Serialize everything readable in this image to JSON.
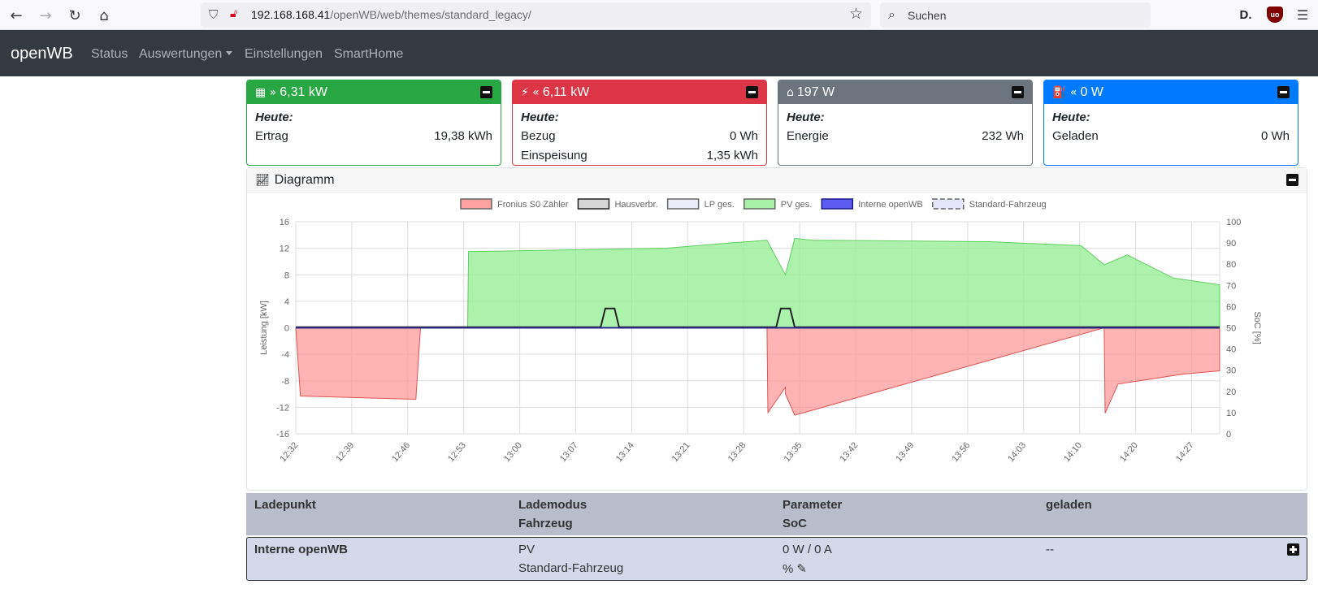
{
  "browser": {
    "url_host": "192.168.168.41",
    "url_path": "/openWB/web/themes/standard_legacy/",
    "search_placeholder": "Suchen",
    "icons": [
      "back-icon",
      "forward-icon",
      "reload-icon",
      "home-icon",
      "shield-icon",
      "insecure-lock-icon",
      "bookmark-star-icon",
      "search-icon",
      "menu-icon"
    ]
  },
  "navbar": {
    "brand": "openWB",
    "links": [
      "Status",
      "Auswertungen",
      "Einstellungen",
      "SmartHome"
    ]
  },
  "cards": {
    "pv": {
      "header": "6,31 kW",
      "today": "Heute:",
      "rows": [
        {
          "label": "Ertrag",
          "value": "19,38 kWh"
        }
      ],
      "color": "#28a745"
    },
    "evu": {
      "header": "6,11 kW",
      "today": "Heute:",
      "rows": [
        {
          "label": "Bezug",
          "value": "0 Wh"
        },
        {
          "label": "Einspeisung",
          "value": "1,35 kWh"
        }
      ],
      "color": "#dc3545"
    },
    "home": {
      "header": "197 W",
      "today": "Heute:",
      "rows": [
        {
          "label": "Energie",
          "value": "232 Wh"
        }
      ],
      "color": "#6c757d"
    },
    "lp": {
      "header": "0 W",
      "today": "Heute:",
      "rows": [
        {
          "label": "Geladen",
          "value": "0 Wh"
        }
      ],
      "color": "#007bff"
    }
  },
  "diagram": {
    "title": "Diagramm"
  },
  "chart_data": {
    "type": "area",
    "xlabel": "",
    "ylabel": "Leistung [kW]",
    "y2label": "SoC [%]",
    "ylim": [
      -16,
      16
    ],
    "y_ticks": [
      16,
      12,
      8,
      4,
      0,
      -4,
      -8,
      -12,
      -16
    ],
    "y2lim": [
      0,
      100
    ],
    "y2_ticks": [
      100,
      90,
      80,
      70,
      60,
      50,
      40,
      30,
      20,
      10,
      0
    ],
    "x_ticks": [
      "12:32",
      "12:39",
      "12:46",
      "12:53",
      "13:00",
      "13:07",
      "13:14",
      "13:21",
      "13:28",
      "13:35",
      "13:42",
      "13:49",
      "13:56",
      "14:03",
      "14:10",
      "14:20",
      "14:27"
    ],
    "legend": [
      {
        "name": "Fronius S0 Zähler",
        "color": "#ff8a8a"
      },
      {
        "name": "Hausverbr.",
        "color": "#cccccc"
      },
      {
        "name": "LP ges.",
        "color": "#e8e8f8"
      },
      {
        "name": "PV ges.",
        "color": "#90ee90"
      },
      {
        "name": "Interne openWB",
        "color": "#3333ee"
      },
      {
        "name": "Standard-Fahrzeug",
        "color": "#aaaaee"
      }
    ],
    "series": [
      {
        "name": "Fronius S0 Zähler",
        "x": [
          0,
          0.005,
          0.13,
          0.135,
          0.5,
          0.51,
          0.511,
          0.53,
          0.53,
          0.54,
          0.875,
          0.876,
          0.89,
          0.96,
          1
        ],
        "values": [
          0,
          -10.3,
          -10.8,
          0,
          0,
          0,
          -12.8,
          -9,
          -10,
          -13.2,
          0,
          -12.9,
          -8.5,
          -7,
          -6.5
        ]
      },
      {
        "name": "PV ges.",
        "x": [
          0,
          0.186,
          0.187,
          0.4,
          0.47,
          0.51,
          0.53,
          0.54,
          0.56,
          0.75,
          0.85,
          0.875,
          0.9,
          0.95,
          1
        ],
        "values": [
          0,
          0,
          11.5,
          12,
          12.8,
          13.2,
          8,
          13.5,
          13.2,
          13,
          12.4,
          9.5,
          11,
          7.5,
          6.5
        ]
      },
      {
        "name": "Hausverbr.",
        "x": [
          0,
          0.33,
          0.335,
          0.345,
          0.35,
          0.52,
          0.525,
          0.535,
          0.54,
          1
        ],
        "values": [
          0.1,
          0.1,
          2.9,
          2.9,
          0.1,
          0.1,
          2.9,
          2.9,
          0.1,
          0.1
        ]
      }
    ]
  },
  "table": {
    "headers": {
      "ladepunkt": "Ladepunkt",
      "lademodus": "Lademodus",
      "fahrzeug": "Fahrzeug",
      "parameter": "Parameter",
      "soc": "SoC",
      "geladen": "geladen"
    },
    "rows": [
      {
        "name": "Interne openWB",
        "mode": "PV",
        "vehicle": "Standard-Fahrzeug",
        "parameter": "0 W / 0 A",
        "soc": "%",
        "charged": "--"
      }
    ]
  }
}
